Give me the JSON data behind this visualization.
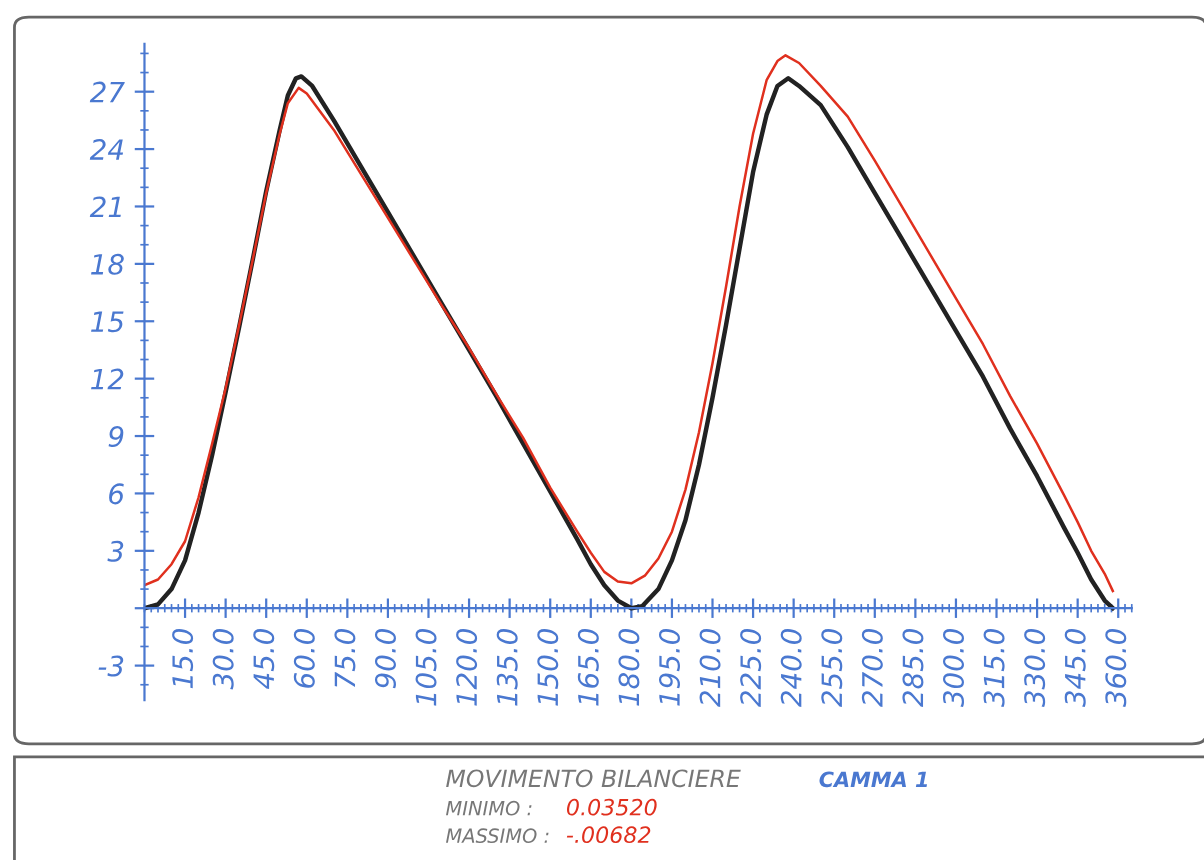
{
  "chart_data": {
    "type": "line",
    "title": "MOVIMENTO BILANCIERE",
    "subtitle": "CAMMA 1",
    "annotations": [
      "MINIMO : 0.03520",
      "MASSIMO : -.00682"
    ],
    "xlim": [
      0,
      365
    ],
    "ylim": [
      -4.8,
      29.5
    ],
    "xticks": [
      {
        "value": 15,
        "label": "15.0"
      },
      {
        "value": 30,
        "label": "30.0"
      },
      {
        "value": 45,
        "label": "45.0"
      },
      {
        "value": 60,
        "label": "60.0"
      },
      {
        "value": 75,
        "label": "75.0"
      },
      {
        "value": 90,
        "label": "90.0"
      },
      {
        "value": 105,
        "label": "105.0"
      },
      {
        "value": 120,
        "label": "120.0"
      },
      {
        "value": 135,
        "label": "135.0"
      },
      {
        "value": 150,
        "label": "150.0"
      },
      {
        "value": 165,
        "label": "165.0"
      },
      {
        "value": 180,
        "label": "180.0"
      },
      {
        "value": 195,
        "label": "195.0"
      },
      {
        "value": 210,
        "label": "210.0"
      },
      {
        "value": 225,
        "label": "225.0"
      },
      {
        "value": 240,
        "label": "240.0"
      },
      {
        "value": 255,
        "label": "255.0"
      },
      {
        "value": 270,
        "label": "270.0"
      },
      {
        "value": 285,
        "label": "285.0"
      },
      {
        "value": 300,
        "label": "300.0"
      },
      {
        "value": 315,
        "label": "315.0"
      },
      {
        "value": 330,
        "label": "330.0"
      },
      {
        "value": 345,
        "label": "345.0"
      },
      {
        "value": 360,
        "label": "360.0"
      }
    ],
    "yticks": [
      -3,
      {
        "value": 0,
        "label": null
      },
      3,
      6,
      9,
      12,
      15,
      18,
      21,
      24,
      27
    ],
    "grid": false,
    "marker": "none",
    "line_style": "solid",
    "series": [
      {
        "color": "#222222",
        "x": [
          0,
          5,
          10,
          15,
          20,
          25,
          30,
          35,
          40,
          45,
          50,
          53,
          56,
          58,
          62,
          70,
          80,
          90,
          100,
          110,
          120,
          130,
          140,
          150,
          160,
          165,
          170,
          175,
          180,
          184,
          190,
          195,
          200,
          205,
          210,
          215,
          220,
          225,
          230,
          234,
          238,
          242,
          250,
          260,
          270,
          280,
          290,
          300,
          310,
          320,
          330,
          340,
          345,
          350,
          355,
          358
        ],
        "values": [
          0,
          0.2,
          1,
          2.5,
          5,
          8,
          11.3,
          14.7,
          18.2,
          21.8,
          25,
          26.8,
          27.7,
          27.8,
          27.3,
          25.5,
          23.1,
          20.7,
          18.3,
          15.9,
          13.5,
          11.1,
          8.6,
          6.1,
          3.6,
          2.3,
          1.2,
          0.4,
          0,
          0.1,
          1,
          2.5,
          4.6,
          7.5,
          11,
          14.8,
          18.8,
          22.8,
          25.8,
          27.3,
          27.7,
          27.3,
          26.3,
          24.1,
          21.7,
          19.3,
          16.9,
          14.5,
          12.1,
          9.4,
          6.9,
          4.2,
          2.9,
          1.5,
          0.4,
          0
        ]
      },
      {
        "color": "#e0301e",
        "x": [
          0,
          5,
          10,
          15,
          20,
          25,
          30,
          35,
          40,
          45,
          50,
          53,
          57,
          60,
          70,
          80,
          90,
          100,
          110,
          120,
          130,
          140,
          150,
          160,
          165,
          170,
          175,
          180,
          185,
          190,
          195,
          200,
          205,
          210,
          215,
          220,
          225,
          230,
          234,
          237,
          242,
          250,
          260,
          270,
          280,
          290,
          300,
          310,
          320,
          330,
          340,
          345,
          350,
          355,
          358
        ],
        "values": [
          1.2,
          1.5,
          2.3,
          3.5,
          5.8,
          8.6,
          11.5,
          14.8,
          18.2,
          21.7,
          24.8,
          26.4,
          27.2,
          26.9,
          25,
          22.7,
          20.4,
          18.1,
          15.8,
          13.6,
          11.2,
          8.9,
          6.3,
          4,
          2.9,
          1.9,
          1.4,
          1.3,
          1.7,
          2.6,
          4,
          6.2,
          9.2,
          12.8,
          16.8,
          21,
          24.8,
          27.6,
          28.6,
          28.9,
          28.5,
          27.3,
          25.7,
          23.4,
          21,
          18.6,
          16.2,
          13.8,
          11.1,
          8.6,
          5.9,
          4.5,
          3,
          1.8,
          0.9
        ]
      }
    ]
  }
}
